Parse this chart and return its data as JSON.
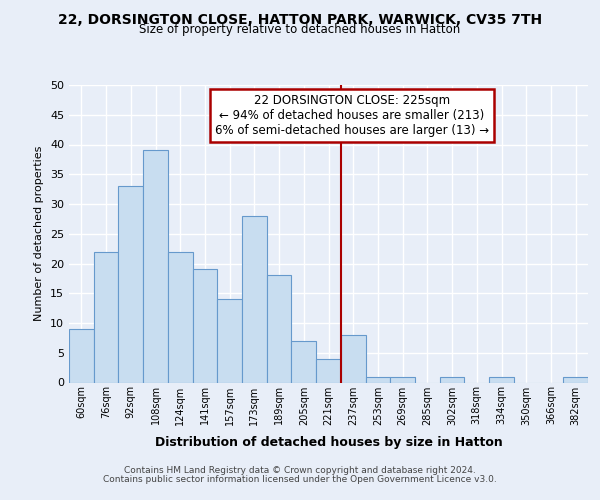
{
  "title": "22, DORSINGTON CLOSE, HATTON PARK, WARWICK, CV35 7TH",
  "subtitle": "Size of property relative to detached houses in Hatton",
  "xlabel": "Distribution of detached houses by size in Hatton",
  "ylabel": "Number of detached properties",
  "bin_labels": [
    "60sqm",
    "76sqm",
    "92sqm",
    "108sqm",
    "124sqm",
    "141sqm",
    "157sqm",
    "173sqm",
    "189sqm",
    "205sqm",
    "221sqm",
    "237sqm",
    "253sqm",
    "269sqm",
    "285sqm",
    "302sqm",
    "318sqm",
    "334sqm",
    "350sqm",
    "366sqm",
    "382sqm"
  ],
  "bar_values": [
    9,
    22,
    33,
    39,
    22,
    19,
    14,
    28,
    18,
    7,
    4,
    8,
    1,
    1,
    0,
    1,
    0,
    1,
    0,
    0,
    1
  ],
  "bar_color": "#c8ddf0",
  "bar_edge_color": "#6699cc",
  "property_line_x": 10.5,
  "property_line_color": "#aa0000",
  "annotation_text": "22 DORSINGTON CLOSE: 225sqm\n← 94% of detached houses are smaller (213)\n6% of semi-detached houses are larger (13) →",
  "annotation_box_color": "#ffffff",
  "annotation_box_edge_color": "#aa0000",
  "ylim": [
    0,
    50
  ],
  "yticks": [
    0,
    5,
    10,
    15,
    20,
    25,
    30,
    35,
    40,
    45,
    50
  ],
  "background_color": "#e8eef8",
  "grid_color": "#ffffff",
  "footer_line1": "Contains HM Land Registry data © Crown copyright and database right 2024.",
  "footer_line2": "Contains public sector information licensed under the Open Government Licence v3.0."
}
